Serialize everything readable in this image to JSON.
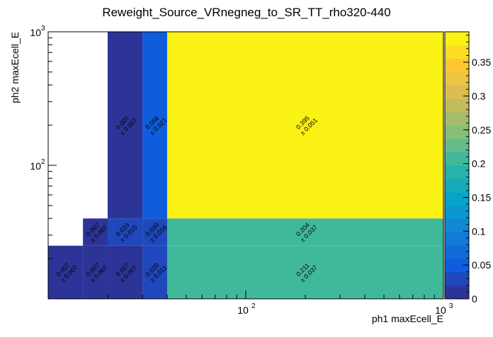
{
  "chart_data": {
    "type": "heatmap",
    "title": "Reweight_Source_VRnegneg_to_SR_TT_rho320-440",
    "xlabel": "ph1 maxEcell_E",
    "ylabel": "ph2 maxEcell_E",
    "x_scale": "log",
    "y_scale": "log",
    "xlim": [
      10,
      1000
    ],
    "ylim": [
      10,
      1000
    ],
    "x_edges": [
      10,
      15,
      20,
      30,
      40,
      1000
    ],
    "y_edges": [
      10,
      25,
      40,
      1000
    ],
    "x_ticks": [
      {
        "value": 100,
        "label": "10",
        "exp": "2"
      },
      {
        "value": 1000,
        "label": "10",
        "exp": "3"
      }
    ],
    "y_ticks": [
      {
        "value": 100,
        "label": "10",
        "exp": "2"
      },
      {
        "value": 1000,
        "label": "10",
        "exp": "3"
      }
    ],
    "cells": [
      [
        {
          "v": "0.007",
          "e": "0.007"
        },
        {
          "v": "0.007",
          "e": "0.007"
        },
        {
          "v": "0.007",
          "e": "0.007"
        },
        {
          "v": "0.020",
          "e": "0.011"
        },
        {
          "v": "0.211",
          "e": "0.037"
        }
      ],
      [
        null,
        {
          "v": "0.007",
          "e": "0.007"
        },
        {
          "v": "0.033",
          "e": "0.015"
        },
        {
          "v": "0.039",
          "e": "0.016"
        },
        {
          "v": "0.204",
          "e": "0.037"
        }
      ],
      [
        null,
        null,
        {
          "v": "0.007",
          "e": "0.007"
        },
        {
          "v": "0.056",
          "e": "0.021"
        },
        {
          "v": "0.395",
          "e": "0.051"
        }
      ]
    ],
    "zlim": [
      0,
      0.395
    ],
    "colorbar_ticks": [
      "0",
      "0.05",
      "0.1",
      "0.15",
      "0.2",
      "0.25",
      "0.3",
      "0.35"
    ],
    "palette": "kBird",
    "grid": false
  }
}
